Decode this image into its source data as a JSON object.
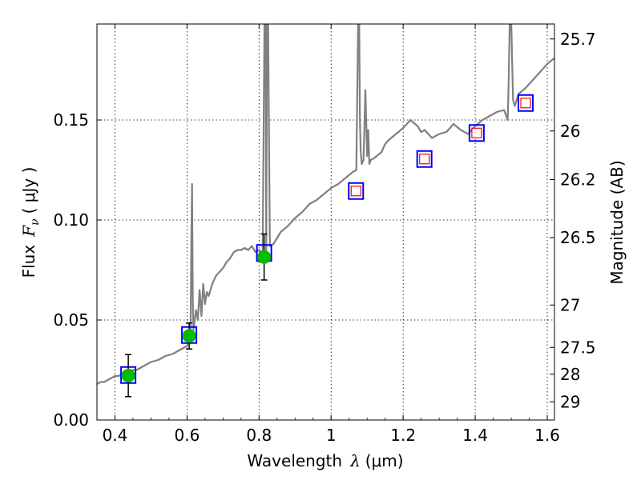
{
  "chart_data": {
    "type": "line",
    "xlabel_prefix": "Wavelength",
    "xlabel_lambda": "λ",
    "xlabel_unit": "(μm)",
    "ylabel_prefix": "Flux",
    "ylabel_math": "F",
    "ylabel_sub": "ν",
    "ylabel_unit": "( μJy )",
    "y2label": "Magnitude (AB)",
    "xlim": [
      0.35,
      1.62
    ],
    "ylim": [
      0.0,
      0.198
    ],
    "grid": true,
    "x_ticks": [
      0.4,
      0.6,
      0.8,
      1.0,
      1.2,
      1.4,
      1.6
    ],
    "x_tick_labels": [
      "0.4",
      "0.6",
      "0.8",
      "1",
      "1.2",
      "1.4",
      "1.6"
    ],
    "y_ticks": [
      0.0,
      0.05,
      0.1,
      0.15
    ],
    "y_tick_labels": [
      "0.00",
      "0.05",
      "0.10",
      "0.15"
    ],
    "y2_ticks": [
      {
        "label": "25.7",
        "flux": 0.1905
      },
      {
        "label": "26",
        "flux": 0.1445
      },
      {
        "label": "26.2",
        "flux": 0.1202
      },
      {
        "label": "26.5",
        "flux": 0.0912
      },
      {
        "label": "27",
        "flux": 0.0575
      },
      {
        "label": "27.5",
        "flux": 0.0363
      },
      {
        "label": "28",
        "flux": 0.0229
      },
      {
        "label": "29",
        "flux": 0.0091
      }
    ],
    "colors": {
      "template": "#808080",
      "model_box": "#0000ff",
      "measured": "#00bb00",
      "upper_box": "#ff0000",
      "errorbar": "#000000"
    },
    "series": [
      {
        "style": "template-spectrum",
        "x": [
          0.35,
          0.36,
          0.37,
          0.38,
          0.39,
          0.4,
          0.41,
          0.42,
          0.43,
          0.44,
          0.45,
          0.46,
          0.47,
          0.48,
          0.5,
          0.52,
          0.54,
          0.56,
          0.58,
          0.6,
          0.605,
          0.61,
          0.612,
          0.614,
          0.616,
          0.618,
          0.62,
          0.625,
          0.63,
          0.635,
          0.64,
          0.645,
          0.65,
          0.655,
          0.66,
          0.67,
          0.68,
          0.69,
          0.7,
          0.71,
          0.72,
          0.73,
          0.74,
          0.75,
          0.76,
          0.77,
          0.78,
          0.79,
          0.8,
          0.81,
          0.815,
          0.818,
          0.82,
          0.822,
          0.825,
          0.83,
          0.84,
          0.85,
          0.86,
          0.88,
          0.9,
          0.92,
          0.94,
          0.96,
          0.98,
          1.0,
          1.02,
          1.04,
          1.06,
          1.07,
          1.075,
          1.078,
          1.08,
          1.082,
          1.085,
          1.09,
          1.095,
          1.1,
          1.103,
          1.106,
          1.11,
          1.12,
          1.14,
          1.15,
          1.16,
          1.18,
          1.2,
          1.22,
          1.24,
          1.25,
          1.26,
          1.27,
          1.28,
          1.3,
          1.32,
          1.34,
          1.36,
          1.38,
          1.4,
          1.42,
          1.44,
          1.46,
          1.48,
          1.49,
          1.493,
          1.496,
          1.5,
          1.505,
          1.51,
          1.52,
          1.54,
          1.56,
          1.58,
          1.6,
          1.62
        ],
        "y": [
          0.018,
          0.019,
          0.019,
          0.02,
          0.021,
          0.022,
          0.022,
          0.023,
          0.023,
          0.024,
          0.025,
          0.025,
          0.026,
          0.027,
          0.029,
          0.03,
          0.032,
          0.033,
          0.035,
          0.037,
          0.04,
          0.045,
          0.09,
          0.118,
          0.06,
          0.045,
          0.048,
          0.055,
          0.05,
          0.065,
          0.052,
          0.068,
          0.058,
          0.064,
          0.062,
          0.068,
          0.072,
          0.074,
          0.076,
          0.079,
          0.081,
          0.084,
          0.085,
          0.085,
          0.086,
          0.085,
          0.087,
          0.084,
          0.085,
          0.083,
          0.2,
          0.2,
          0.085,
          0.2,
          0.2,
          0.087,
          0.088,
          0.091,
          0.094,
          0.097,
          0.101,
          0.104,
          0.108,
          0.11,
          0.113,
          0.116,
          0.118,
          0.121,
          0.124,
          0.125,
          0.2,
          0.2,
          0.15,
          0.135,
          0.128,
          0.13,
          0.165,
          0.132,
          0.145,
          0.128,
          0.13,
          0.131,
          0.134,
          0.138,
          0.14,
          0.143,
          0.146,
          0.15,
          0.147,
          0.144,
          0.145,
          0.143,
          0.141,
          0.143,
          0.144,
          0.148,
          0.145,
          0.143,
          0.147,
          0.15,
          0.152,
          0.154,
          0.155,
          0.15,
          0.17,
          0.2,
          0.2,
          0.16,
          0.157,
          0.163,
          0.166,
          0.17,
          0.174,
          0.178,
          0.181
        ]
      },
      {
        "style": "model-photometry",
        "x": [
          0.437,
          0.606,
          0.814,
          1.069,
          1.259,
          1.404,
          1.54
        ],
        "y": [
          0.0225,
          0.0425,
          0.0835,
          0.1145,
          0.1305,
          0.1435,
          0.1585
        ]
      },
      {
        "style": "measured-photometry",
        "x": [
          0.437,
          0.606,
          0.814
        ],
        "y": [
          0.0222,
          0.042,
          0.0815
        ],
        "yerr": [
          0.0105,
          0.0065,
          0.0115
        ]
      },
      {
        "style": "upper-limits",
        "x": [
          1.069,
          1.259,
          1.404,
          1.54
        ],
        "y": [
          0.1145,
          0.1305,
          0.1435,
          0.1585
        ]
      }
    ]
  }
}
